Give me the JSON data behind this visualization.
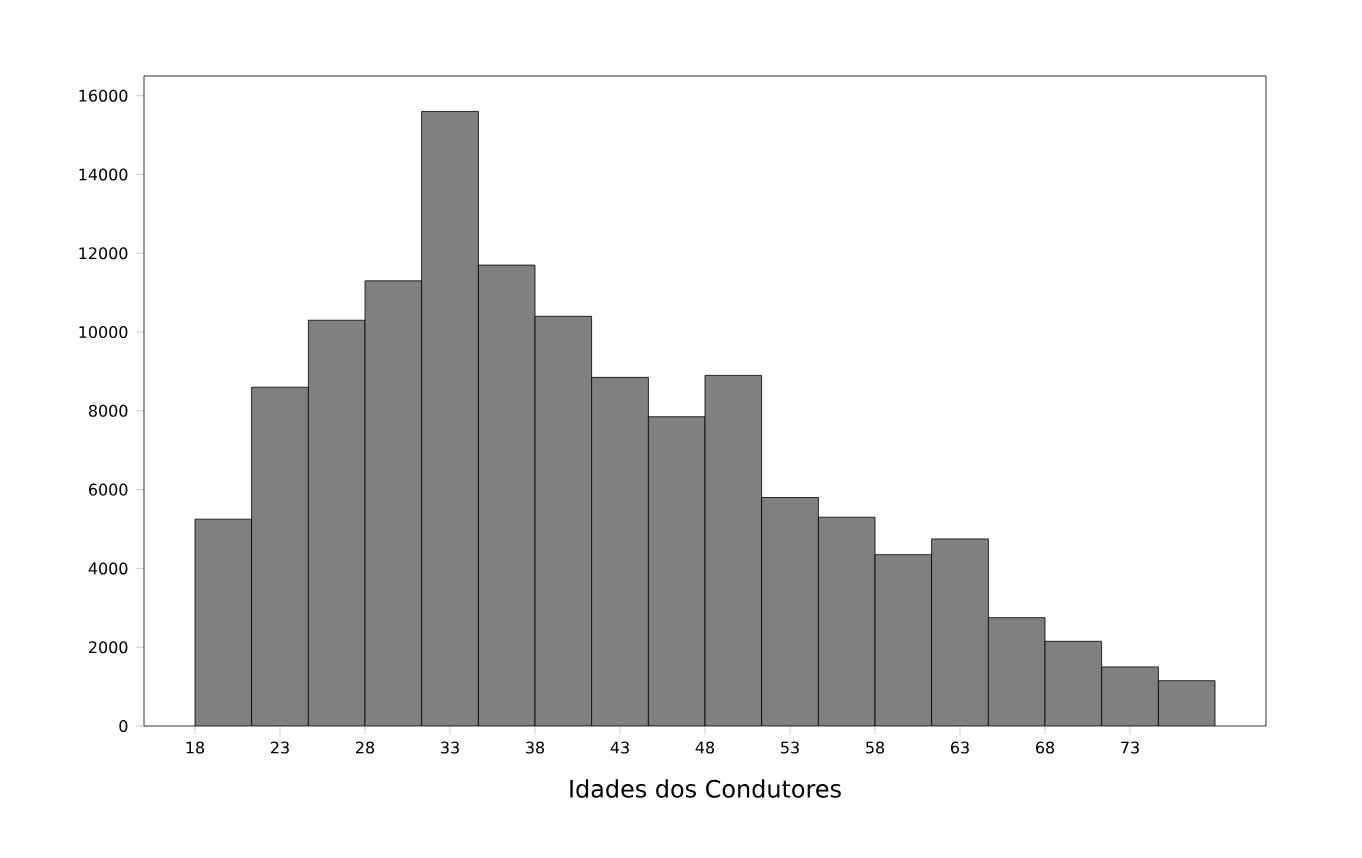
{
  "chart_data": {
    "type": "histogram",
    "xlabel": "Idades dos Condutores",
    "color": "#808080",
    "bins": [
      18,
      21.33,
      24.67,
      28,
      31.33,
      34.67,
      38,
      41.33,
      44.67,
      48,
      51.33,
      54.67,
      58,
      61.33,
      64.67,
      68,
      71.33,
      74.67,
      78
    ],
    "values": [
      5250,
      8600,
      10300,
      11300,
      15600,
      11700,
      10400,
      8850,
      7850,
      8900,
      5800,
      5300,
      4350,
      4750,
      2750,
      2150,
      1500,
      1150
    ],
    "xlim": [
      15,
      81
    ],
    "xticks": [
      18,
      23,
      28,
      33,
      38,
      43,
      48,
      53,
      58,
      63,
      68,
      73
    ],
    "ylim": [
      0,
      16500
    ],
    "yticks": [
      0,
      2000,
      4000,
      6000,
      8000,
      10000,
      12000,
      14000,
      16000
    ],
    "grid": false
  }
}
